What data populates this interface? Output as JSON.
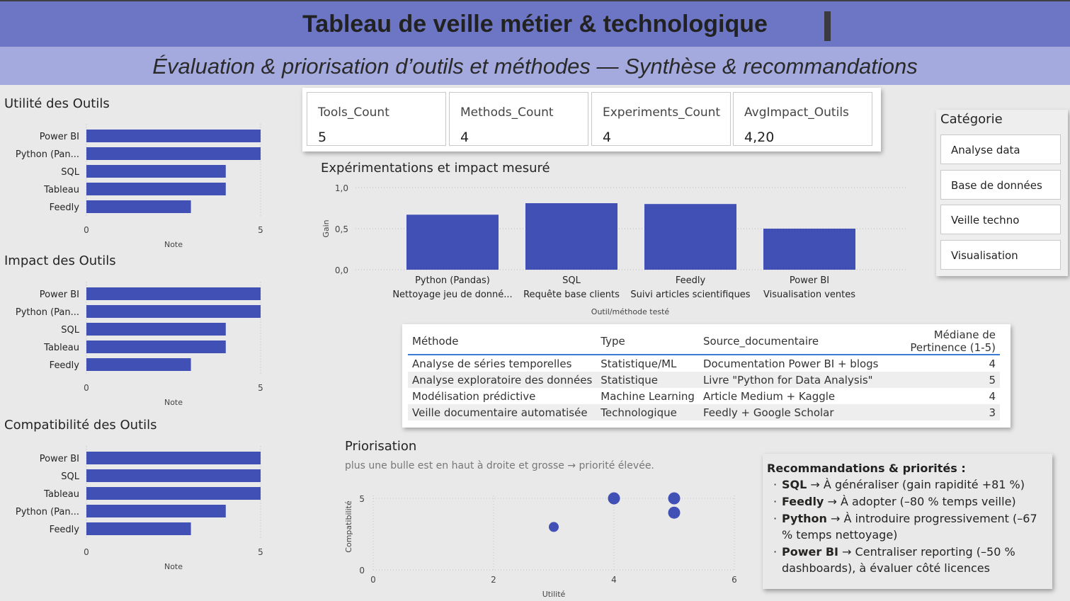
{
  "header": {
    "title": "Tableau de veille métier & technologique",
    "subtitle": "Évaluation & priorisation d’outils et méthodes — Synthèse & recommandations"
  },
  "kpis": [
    {
      "label": "Tools_Count",
      "value": "5"
    },
    {
      "label": "Methods_Count",
      "value": "4"
    },
    {
      "label": "Experiments_Count",
      "value": "4"
    },
    {
      "label": "AvgImpact_Outils",
      "value": "4,20"
    }
  ],
  "slicer": {
    "title": "Catégorie",
    "items": [
      "Analyse data",
      "Base de données",
      "Veille techno",
      "Visualisation"
    ]
  },
  "table": {
    "columns": [
      "Méthode",
      "Type",
      "Source_documentaire",
      "Médiane de Pertinence (1-5)"
    ],
    "rows": [
      [
        "Analyse de séries temporelles",
        "Statistique/ML",
        "Documentation Power BI + blogs",
        "4"
      ],
      [
        "Analyse exploratoire des données",
        "Statistique",
        "Livre \"Python for Data Analysis\"",
        "5"
      ],
      [
        "Modélisation prédictive",
        "Machine Learning",
        "Article Medium + Kaggle",
        "4"
      ],
      [
        "Veille documentaire automatisée",
        "Technologique",
        "Feedly + Google Scholar",
        "3"
      ]
    ]
  },
  "recommendations": {
    "title": "Recommandations & priorités :",
    "items": [
      {
        "tool": "SQL",
        "text": " → À généraliser (gain rapidité +81 %)"
      },
      {
        "tool": "Feedly",
        "text": " → À adopter (–80 % temps veille)"
      },
      {
        "tool": "Python",
        "text": " → À introduire progressivement (–67 % temps nettoyage)"
      },
      {
        "tool": "Power BI",
        "text": " → Centraliser reporting (–50 % dashboards), à évaluer côté licences"
      }
    ]
  },
  "colors": {
    "bar": "#4050b5",
    "header": "#6d76c4",
    "subheader": "#a4aade",
    "table_rule": "#3a7bd5"
  },
  "chart_data": [
    {
      "id": "utilite",
      "type": "bar",
      "orientation": "horizontal",
      "title": "Utilité des Outils",
      "categories": [
        "Power BI",
        "Python (Pan...",
        "SQL",
        "Tableau",
        "Feedly"
      ],
      "values": [
        5,
        5,
        4,
        4,
        3
      ],
      "xlabel": "Note",
      "ylabel": "",
      "xlim": [
        0,
        5
      ],
      "ticks": [
        "0",
        "5"
      ]
    },
    {
      "id": "impact",
      "type": "bar",
      "orientation": "horizontal",
      "title": "Impact des Outils",
      "categories": [
        "Power BI",
        "Python (Pan...",
        "SQL",
        "Tableau",
        "Feedly"
      ],
      "values": [
        5,
        5,
        4,
        4,
        3
      ],
      "xlabel": "Note",
      "ylabel": "",
      "xlim": [
        0,
        5
      ],
      "ticks": [
        "0",
        "5"
      ]
    },
    {
      "id": "compat",
      "type": "bar",
      "orientation": "horizontal",
      "title": "Compatibilité des Outils",
      "categories": [
        "Power BI",
        "SQL",
        "Tableau",
        "Python (Pan...",
        "Feedly"
      ],
      "values": [
        5,
        5,
        5,
        4,
        3
      ],
      "xlabel": "Note",
      "ylabel": "",
      "xlim": [
        0,
        5
      ],
      "ticks": [
        "0",
        "5"
      ]
    },
    {
      "id": "experiments",
      "type": "bar",
      "title": "Expérimentations et impact mesuré",
      "categories": [
        [
          "Python (Pandas)",
          "Nettoyage jeu de donné..."
        ],
        [
          "SQL",
          "Requête base clients"
        ],
        [
          "Feedly",
          "Suivi articles scientifiques"
        ],
        [
          "Power BI",
          "Visualisation ventes"
        ]
      ],
      "values": [
        0.67,
        0.81,
        0.8,
        0.5
      ],
      "xlabel": "Outil/méthode testé",
      "ylabel": "Gain",
      "ylim": [
        0,
        1
      ],
      "ticks": [
        "0,0",
        "0,5",
        "1,0"
      ],
      "grid": true
    },
    {
      "id": "priorisation",
      "type": "scatter",
      "title": "Priorisation",
      "subtitle": "plus une bulle est en haut à droite et grosse → priorité élevée.",
      "points": [
        {
          "x": 3,
          "y": 3
        },
        {
          "x": 4,
          "y": 5
        },
        {
          "x": 5,
          "y": 5
        },
        {
          "x": 5,
          "y": 4
        }
      ],
      "xlabel": "Utilité",
      "ylabel": "Compatibilité",
      "xlim": [
        0,
        6
      ],
      "ylim": [
        0,
        5
      ],
      "xticks": [
        "0",
        "2",
        "4",
        "6"
      ],
      "yticks": [
        "0",
        "5"
      ],
      "grid": true
    }
  ]
}
